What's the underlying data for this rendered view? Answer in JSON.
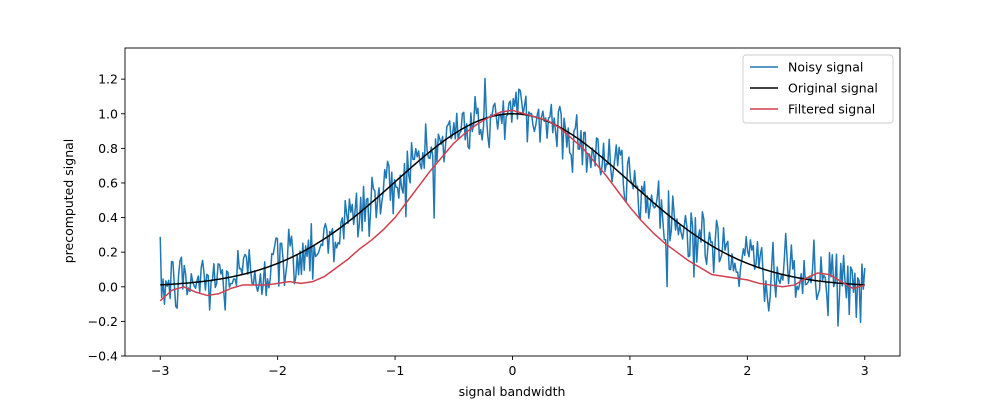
{
  "chart_data": {
    "type": "line",
    "xlabel": "signal bandwidth",
    "ylabel": "precomputed signal",
    "xlim": [
      -3.3,
      3.3
    ],
    "ylim": [
      -0.4,
      1.38
    ],
    "x_ticks": [
      -3,
      -2,
      -1,
      0,
      1,
      2,
      3
    ],
    "x_tick_labels": [
      "−3",
      "−2",
      "−1",
      "0",
      "1",
      "2",
      "3"
    ],
    "y_ticks": [
      -0.4,
      -0.2,
      0.0,
      0.2,
      0.4,
      0.6,
      0.8,
      1.0,
      1.2
    ],
    "y_tick_labels": [
      "−0.4",
      "−0.2",
      "0.0",
      "0.2",
      "0.4",
      "0.6",
      "0.8",
      "1.0",
      "1.2"
    ],
    "grid": false,
    "legend_position": "top-right",
    "x_range": [
      -3,
      3
    ],
    "num_points": 500,
    "series": [
      {
        "name": "Noisy signal",
        "color": "#1f77b4",
        "function": "exp(-x^2/2) + gaussian noise",
        "noise_std": 0.1
      },
      {
        "name": "Original signal",
        "color": "#000000",
        "function": "exp(-x^2/2)"
      },
      {
        "name": "Filtered signal",
        "color": "#d0414f",
        "function": "smoothed noisy signal",
        "x": [
          -3.0,
          -2.9,
          -2.8,
          -2.7,
          -2.6,
          -2.5,
          -2.4,
          -2.3,
          -2.2,
          -2.1,
          -2.0,
          -1.9,
          -1.8,
          -1.7,
          -1.6,
          -1.5,
          -1.4,
          -1.3,
          -1.2,
          -1.1,
          -1.0,
          -0.9,
          -0.8,
          -0.7,
          -0.6,
          -0.5,
          -0.4,
          -0.3,
          -0.2,
          -0.1,
          0.0,
          0.1,
          0.2,
          0.3,
          0.4,
          0.5,
          0.6,
          0.7,
          0.8,
          0.9,
          1.0,
          1.1,
          1.2,
          1.3,
          1.4,
          1.5,
          1.6,
          1.7,
          1.8,
          1.9,
          2.0,
          2.1,
          2.2,
          2.3,
          2.4,
          2.5,
          2.6,
          2.7,
          2.8,
          2.9,
          3.0
        ],
        "y": [
          -0.08,
          -0.02,
          0.0,
          -0.03,
          -0.05,
          -0.04,
          -0.01,
          0.01,
          0.01,
          0.01,
          0.02,
          0.03,
          0.02,
          0.03,
          0.06,
          0.11,
          0.16,
          0.22,
          0.27,
          0.33,
          0.4,
          0.49,
          0.58,
          0.67,
          0.75,
          0.83,
          0.89,
          0.94,
          0.98,
          1.01,
          1.02,
          1.0,
          0.98,
          0.96,
          0.92,
          0.86,
          0.8,
          0.72,
          0.64,
          0.55,
          0.46,
          0.38,
          0.31,
          0.25,
          0.2,
          0.15,
          0.11,
          0.07,
          0.06,
          0.05,
          0.04,
          0.02,
          0.01,
          0.0,
          0.01,
          0.05,
          0.08,
          0.07,
          0.03,
          -0.01,
          0.01
        ]
      }
    ]
  }
}
